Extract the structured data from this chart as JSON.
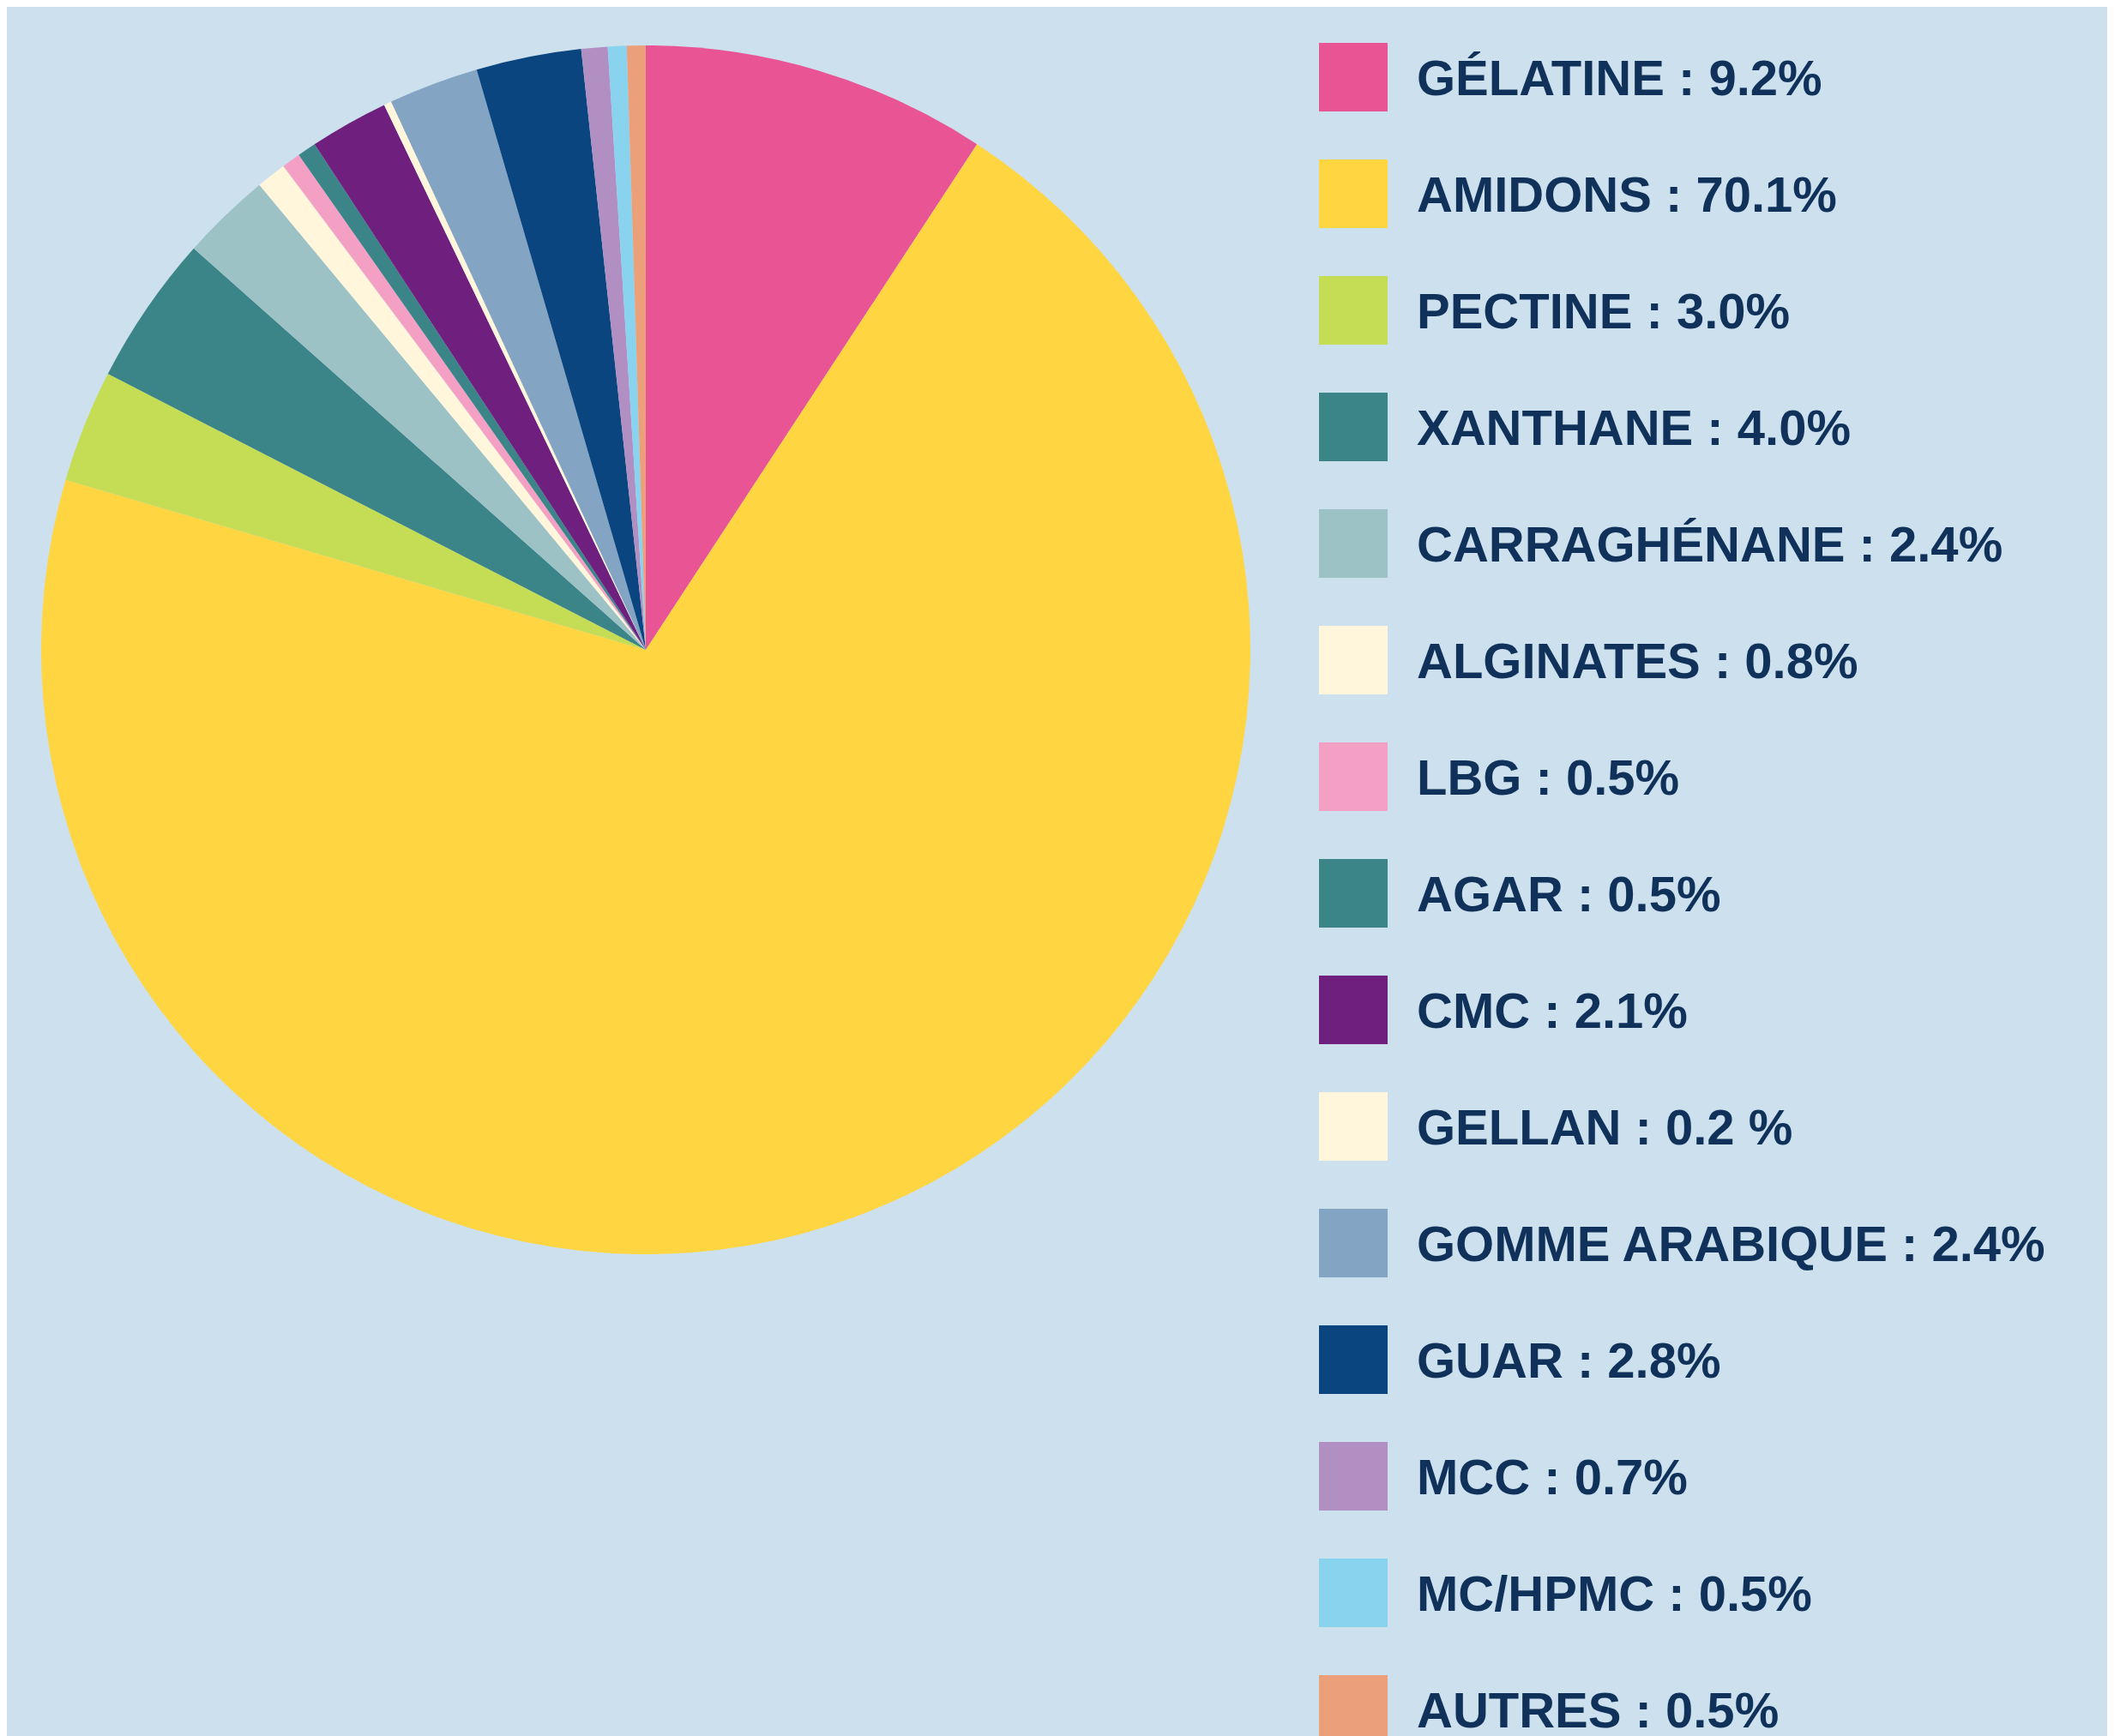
{
  "chart_data": {
    "type": "pie",
    "categories": [
      "GÉLATINE",
      "AMIDONS",
      "PECTINE",
      "XANTHANE",
      "CARRAGHÉNANE",
      "ALGINATES",
      "LBG",
      "AGAR",
      "CMC",
      "GELLAN",
      "GOMME ARABIQUE",
      "GUAR",
      "MCC",
      "MC/HPMC",
      "AUTRES"
    ],
    "values": [
      9.2,
      70.1,
      3.0,
      4.0,
      2.4,
      0.8,
      0.5,
      0.5,
      2.1,
      0.2,
      2.4,
      2.8,
      0.7,
      0.5,
      0.5
    ],
    "value_labels": [
      "9.2%",
      "70.1%",
      "3.0%",
      "4.0%",
      "2.4%",
      "0.8%",
      "0.5%",
      "0.5%",
      "2.1%",
      "0.2 %",
      "2.4%",
      "2.8%",
      "0.7%",
      "0.5%",
      "0.5%"
    ],
    "colors": [
      "#e95495",
      "#ffd541",
      "#c5dd55",
      "#3b8487",
      "#9dc2c6",
      "#fff6db",
      "#f4a0c5",
      "#3b8487",
      "#6f1f7d",
      "#fff6db",
      "#84a4c4",
      "#0a4580",
      "#b28fc3",
      "#8ad3ef",
      "#eca07a"
    ],
    "legend": "right"
  }
}
